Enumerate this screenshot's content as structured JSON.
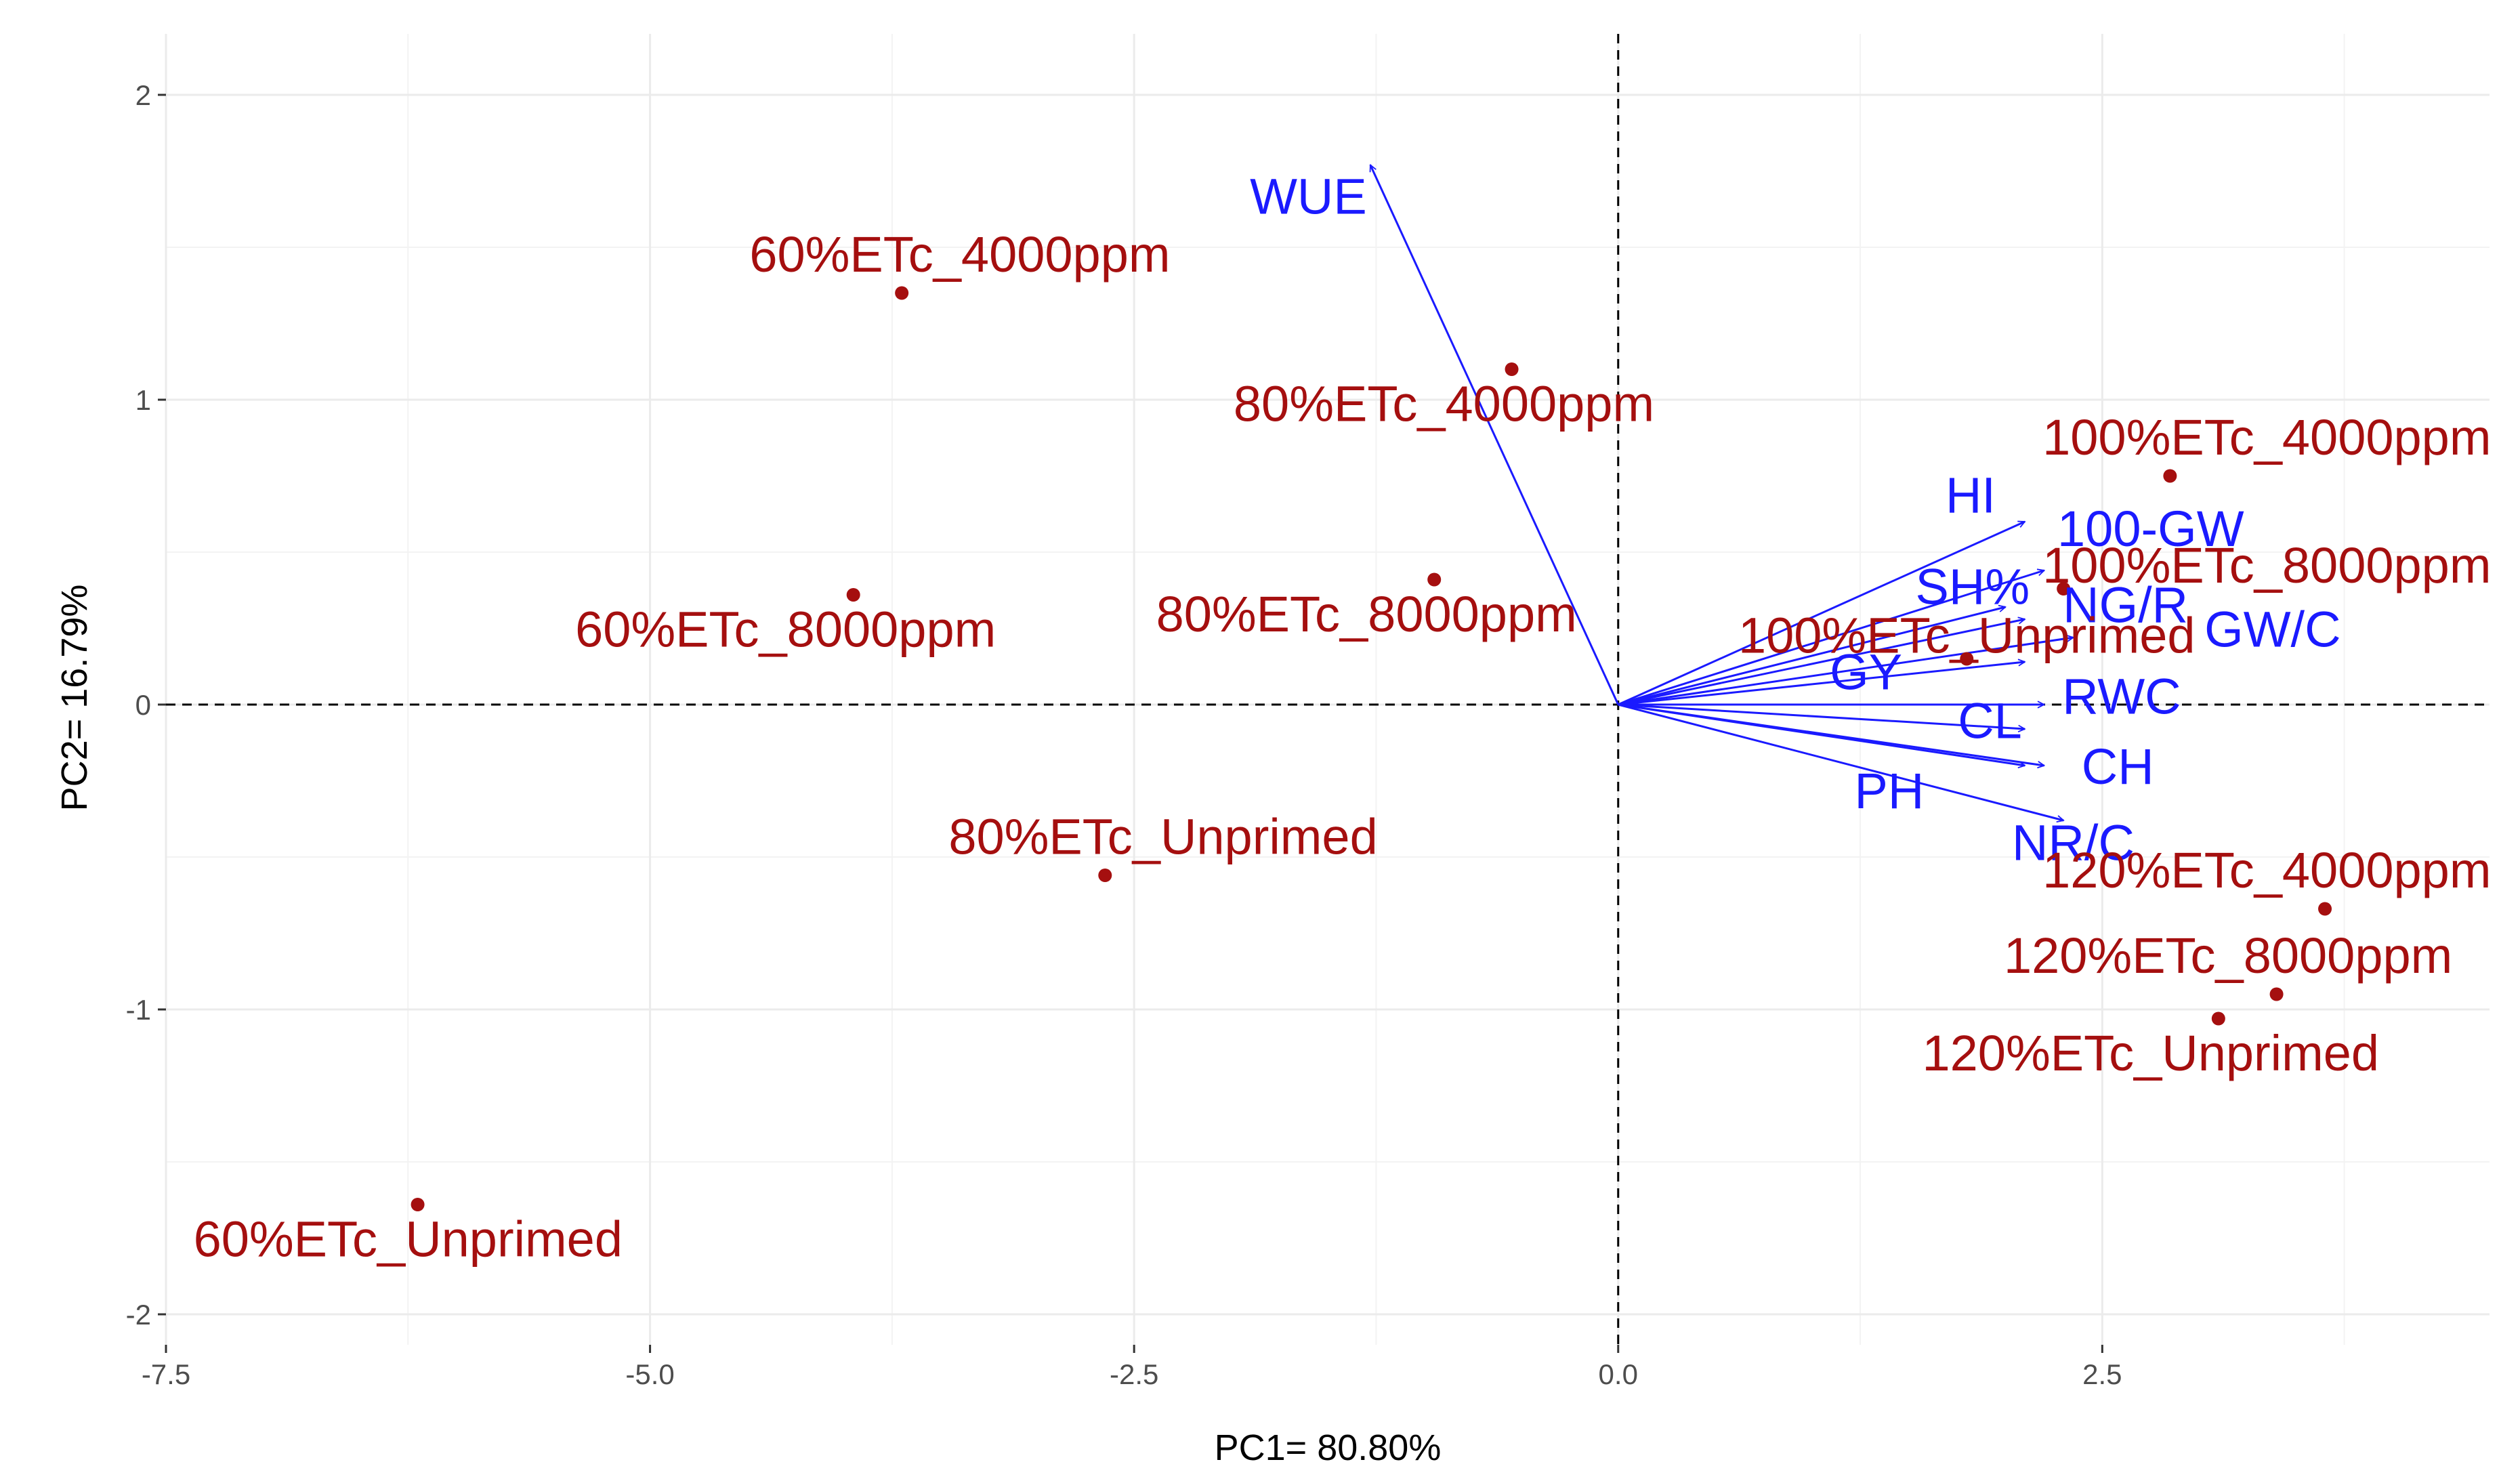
{
  "chart_data": {
    "type": "scatter",
    "subtype": "pca-biplot",
    "title": "",
    "xlabel": "PC1= 80.80%",
    "ylabel": "PC2= 16.79%",
    "xlim": [
      -7.5,
      4.5
    ],
    "ylim": [
      -2.1,
      2.2
    ],
    "x_ticks": [
      -7.5,
      -5.0,
      -2.5,
      0.0,
      2.5
    ],
    "x_tick_labels": [
      "-7.5",
      "-5.0",
      "-2.5",
      "0.0",
      "2.5"
    ],
    "y_ticks": [
      -2,
      -1,
      0,
      1,
      2
    ],
    "y_tick_labels": [
      "-2",
      "-1",
      "0",
      "1",
      "2"
    ],
    "grid": true,
    "reference_lines": {
      "x": 0,
      "y": 0,
      "style": "dashed"
    },
    "colors": {
      "points": "#a50f0f",
      "loadings": "#1a1aff"
    },
    "observations": [
      {
        "label": "60%ETc_4000ppm",
        "x": -3.7,
        "y": 1.35,
        "anchor": "middle",
        "lx": -3.4,
        "ly": 1.42
      },
      {
        "label": "80%ETc_4000ppm",
        "x": -0.55,
        "y": 1.1,
        "anchor": "middle",
        "lx": -0.9,
        "ly": 0.93
      },
      {
        "label": "60%ETc_8000ppm",
        "x": -3.95,
        "y": 0.36,
        "anchor": "middle",
        "lx": -4.3,
        "ly": 0.19
      },
      {
        "label": "80%ETc_8000ppm",
        "x": -0.95,
        "y": 0.41,
        "anchor": "middle",
        "lx": -1.3,
        "ly": 0.24
      },
      {
        "label": "80%ETc_Unprimed",
        "x": -2.65,
        "y": -0.56,
        "anchor": "middle",
        "lx": -2.35,
        "ly": -0.49
      },
      {
        "label": "60%ETc_Unprimed",
        "x": -6.2,
        "y": -1.64,
        "anchor": "middle",
        "lx": -6.25,
        "ly": -1.81
      },
      {
        "label": "100%ETc_4000ppm",
        "x": 2.85,
        "y": 0.75,
        "anchor": "middle",
        "lx": 3.35,
        "ly": 0.82
      },
      {
        "label": "100%ETc_8000ppm",
        "x": 2.3,
        "y": 0.38,
        "anchor": "middle",
        "lx": 3.35,
        "ly": 0.4
      },
      {
        "label": "100%ETc_Unprimed",
        "x": 1.8,
        "y": 0.15,
        "anchor": "middle",
        "lx": 1.8,
        "ly": 0.17
      },
      {
        "label": "120%ETc_4000ppm",
        "x": 3.65,
        "y": -0.67,
        "anchor": "middle",
        "lx": 3.35,
        "ly": -0.6
      },
      {
        "label": "120%ETc_8000ppm",
        "x": 3.4,
        "y": -0.95,
        "anchor": "middle",
        "lx": 3.15,
        "ly": -0.88
      },
      {
        "label": "120%ETc_Unprimed",
        "x": 3.1,
        "y": -1.03,
        "anchor": "middle",
        "lx": 2.75,
        "ly": -1.2
      }
    ],
    "loadings": [
      {
        "label": "WUE",
        "x": -1.28,
        "y": 1.77,
        "lx": -1.6,
        "ly": 1.61
      },
      {
        "label": "HI",
        "x": 2.1,
        "y": 0.6,
        "lx": 1.82,
        "ly": 0.63
      },
      {
        "label": "100-GW",
        "x": 2.2,
        "y": 0.44,
        "lx": 2.75,
        "ly": 0.52
      },
      {
        "label": "SH%",
        "x": 2.0,
        "y": 0.32,
        "lx": 1.83,
        "ly": 0.33
      },
      {
        "label": "NG/R",
        "x": 2.1,
        "y": 0.28,
        "lx": 2.62,
        "ly": 0.27
      },
      {
        "label": "GW/C",
        "x": 2.35,
        "y": 0.22,
        "lx": 3.38,
        "ly": 0.19
      },
      {
        "label": "GY",
        "x": 2.1,
        "y": 0.14,
        "lx": 1.28,
        "ly": 0.05
      },
      {
        "label": "RWC",
        "x": 2.2,
        "y": 0.0,
        "lx": 2.6,
        "ly": -0.03
      },
      {
        "label": "CL",
        "x": 2.1,
        "y": -0.08,
        "lx": 1.92,
        "ly": -0.11
      },
      {
        "label": "CH",
        "x": 2.2,
        "y": -0.2,
        "lx": 2.58,
        "ly": -0.26
      },
      {
        "label": "PH",
        "x": 2.1,
        "y": -0.2,
        "lx": 1.4,
        "ly": -0.34
      },
      {
        "label": "NR/C",
        "x": 2.3,
        "y": -0.38,
        "lx": 2.35,
        "ly": -0.51
      }
    ]
  }
}
